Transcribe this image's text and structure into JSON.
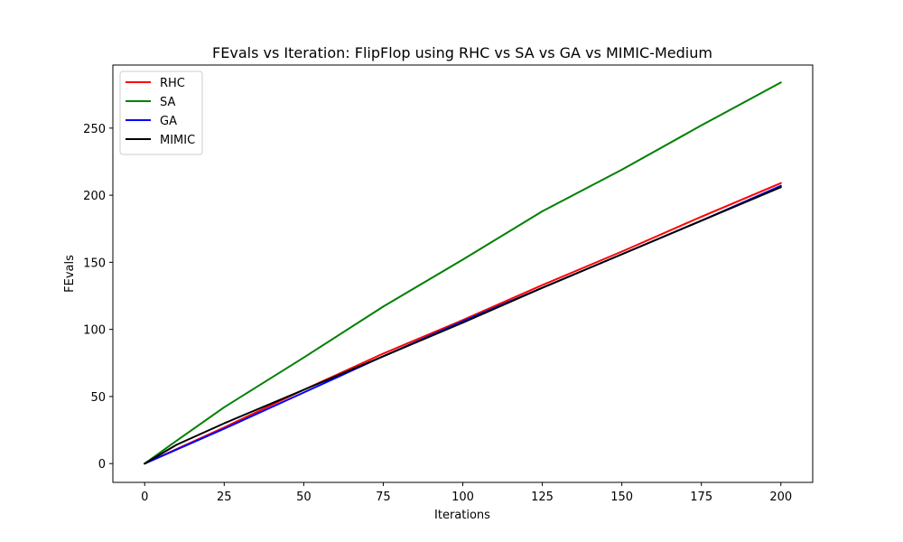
{
  "chart_data": {
    "type": "line",
    "title": "FEvals vs Iteration: FlipFlop using RHC vs SA vs GA vs MIMIC-Medium",
    "xlabel": "Iterations",
    "ylabel": "FEvals",
    "xlim": [
      -10,
      210
    ],
    "ylim": [
      -14,
      297
    ],
    "xticks": [
      0,
      25,
      50,
      75,
      100,
      125,
      150,
      175,
      200
    ],
    "yticks": [
      0,
      50,
      100,
      150,
      200,
      250
    ],
    "grid": false,
    "legend_position": "top-left",
    "series": [
      {
        "name": "RHC",
        "color": "#ff0000",
        "x": [
          0,
          25,
          50,
          75,
          100,
          125,
          150,
          175,
          200
        ],
        "y": [
          0,
          27,
          55,
          82,
          107,
          133,
          158,
          184,
          209
        ]
      },
      {
        "name": "SA",
        "color": "#008000",
        "x": [
          0,
          10,
          25,
          50,
          75,
          100,
          125,
          150,
          175,
          200
        ],
        "y": [
          0,
          17,
          42,
          79,
          117,
          152,
          188,
          219,
          252,
          284
        ]
      },
      {
        "name": "GA",
        "color": "#0000ff",
        "x": [
          0,
          25,
          50,
          75,
          100,
          125,
          150,
          175,
          200
        ],
        "y": [
          0,
          26,
          53,
          80,
          106,
          131,
          156,
          181,
          207
        ]
      },
      {
        "name": "MIMIC",
        "color": "#000000",
        "x": [
          0,
          10,
          25,
          50,
          75,
          100,
          125,
          150,
          175,
          200
        ],
        "y": [
          0,
          14,
          30,
          55,
          80,
          105,
          131,
          156,
          181,
          206
        ]
      }
    ]
  }
}
